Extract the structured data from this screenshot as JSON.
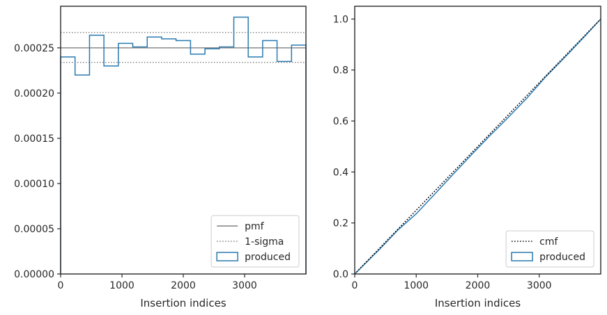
{
  "colors": {
    "produced": "#2a7ab0",
    "pmf": "#808080",
    "sigma": "#808080",
    "cmf": "#000000",
    "axes": "#262626"
  },
  "chart_data": [
    {
      "type": "histogram-step",
      "xlabel": "Insertion indices",
      "ylabel": "",
      "xlim": [
        0,
        4000
      ],
      "ylim": [
        0,
        0.000296
      ],
      "xticks": [
        0,
        1000,
        2000,
        3000
      ],
      "xtick_labels": [
        "0",
        "1000",
        "2000",
        "3000"
      ],
      "yticks": [
        0,
        5e-05,
        0.0001,
        0.00015,
        0.0002,
        0.00025
      ],
      "ytick_labels": [
        "0.00000",
        "0.00005",
        "0.00010",
        "0.00015",
        "0.00020",
        "0.00025"
      ],
      "bin_edges": [
        0,
        235,
        471,
        706,
        941,
        1176,
        1412,
        1647,
        1882,
        2118,
        2353,
        2588,
        2824,
        3059,
        3294,
        3529,
        3765,
        4000
      ],
      "series": [
        {
          "name": "produced",
          "values": [
            0.00024,
            0.00022,
            0.000264,
            0.00023,
            0.000255,
            0.000251,
            0.000262,
            0.00026,
            0.000258,
            0.000243,
            0.000249,
            0.000251,
            0.000284,
            0.00024,
            0.000258,
            0.000235,
            0.000253
          ]
        }
      ],
      "hlines": [
        {
          "name": "pmf",
          "value": 0.00025,
          "style": "solid"
        },
        {
          "name": "1-sigma",
          "value": 0.000267,
          "style": "dotted"
        },
        {
          "name": "1-sigma",
          "value": 0.000234,
          "style": "dotted"
        }
      ],
      "legend": {
        "placement": "lower right",
        "entries": [
          {
            "label": "pmf",
            "kind": "solid-line"
          },
          {
            "label": "1-sigma",
            "kind": "dotted-line"
          },
          {
            "label": "produced",
            "kind": "patch"
          }
        ]
      }
    },
    {
      "type": "line",
      "xlabel": "Insertion indices",
      "ylabel": "",
      "xlim": [
        0,
        4000
      ],
      "ylim": [
        0,
        1.05
      ],
      "xticks": [
        0,
        1000,
        2000,
        3000
      ],
      "xtick_labels": [
        "0",
        "1000",
        "2000",
        "3000"
      ],
      "yticks": [
        0,
        0.2,
        0.4,
        0.6,
        0.8,
        1.0
      ],
      "ytick_labels": [
        "0.0",
        "0.2",
        "0.4",
        "0.6",
        "0.8",
        "1.0"
      ],
      "series": [
        {
          "name": "cmf",
          "style": "dotted",
          "x": [
            0,
            4000
          ],
          "y": [
            0,
            1.0
          ]
        },
        {
          "name": "produced",
          "style": "solid",
          "x": [
            0,
            200,
            400,
            700,
            1000,
            1300,
            1600,
            1900,
            2200,
            2500,
            2800,
            3100,
            3400,
            3700,
            4000
          ],
          "y": [
            0,
            0.048,
            0.096,
            0.172,
            0.236,
            0.313,
            0.391,
            0.468,
            0.543,
            0.615,
            0.69,
            0.772,
            0.846,
            0.922,
            1.0
          ]
        }
      ],
      "legend": {
        "placement": "lower right",
        "entries": [
          {
            "label": "cmf",
            "kind": "dotted-line"
          },
          {
            "label": "produced",
            "kind": "patch"
          }
        ]
      }
    }
  ]
}
